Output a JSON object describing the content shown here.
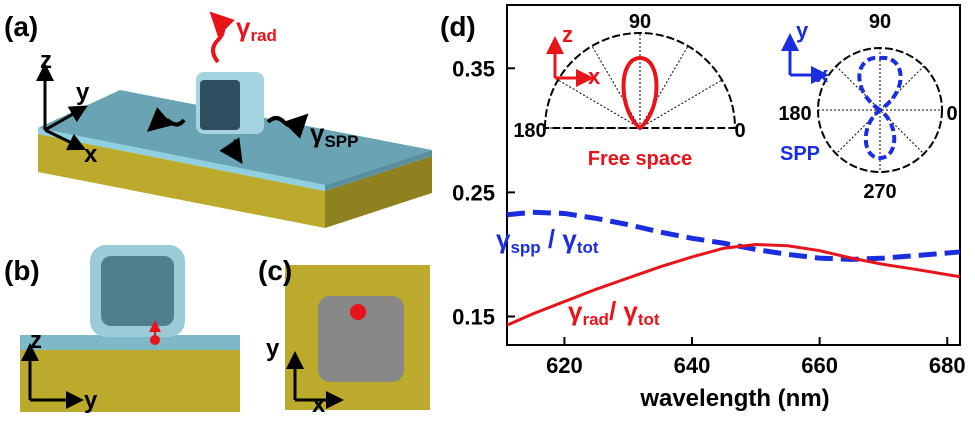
{
  "panels": {
    "a": {
      "label": "(a)",
      "axes": [
        "z",
        "y",
        "x"
      ],
      "rad": [
        "γ",
        "rad"
      ],
      "spp": [
        "γ",
        "SPP"
      ]
    },
    "b": {
      "label": "(b)",
      "axes": [
        "z",
        "y"
      ]
    },
    "c": {
      "label": "(c)",
      "axes": [
        "y",
        "x"
      ]
    },
    "d": {
      "label": "(d)"
    }
  },
  "insets": [
    {
      "axes": [
        "z",
        "x"
      ],
      "angles": [
        "90",
        "180",
        "0"
      ],
      "caption": "Free space"
    },
    {
      "axes": [
        "y",
        "x"
      ],
      "angles": [
        "90",
        "180",
        "0",
        "270"
      ],
      "caption": "SPP"
    }
  ],
  "chart_data": {
    "type": "line",
    "xlabel": "wavelength (nm)",
    "x": [
      611,
      615,
      620,
      625,
      630,
      635,
      640,
      645,
      650,
      655,
      660,
      665,
      670,
      675,
      682
    ],
    "xlim": [
      611,
      682
    ],
    "xticks": [
      620,
      640,
      660,
      680
    ],
    "ylim": [
      0.127,
      0.401
    ],
    "yticks": [
      0.15,
      0.25,
      0.35
    ],
    "series": [
      {
        "name": [
          "γ",
          "spp",
          " / γ",
          "tot"
        ],
        "color": "#1a2ee0",
        "dashed": true,
        "values": [
          0.232,
          0.234,
          0.233,
          0.229,
          0.224,
          0.218,
          0.213,
          0.209,
          0.204,
          0.2,
          0.197,
          0.196,
          0.197,
          0.199,
          0.202
        ]
      },
      {
        "name": [
          "γ",
          "rad",
          "/ γ",
          "tot"
        ],
        "color": "#e8141a",
        "dashed": false,
        "values": [
          0.143,
          0.152,
          0.162,
          0.172,
          0.181,
          0.19,
          0.198,
          0.205,
          0.208,
          0.207,
          0.203,
          0.197,
          0.192,
          0.188,
          0.182
        ]
      }
    ]
  }
}
